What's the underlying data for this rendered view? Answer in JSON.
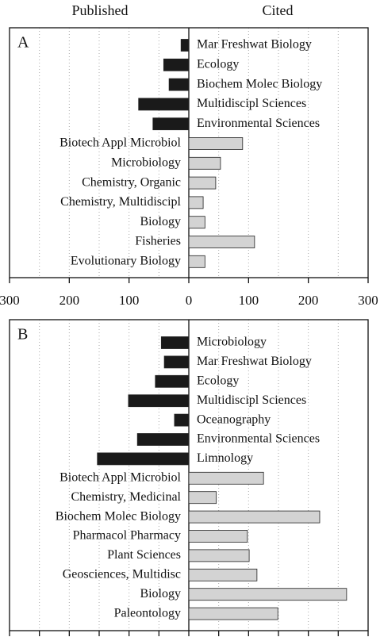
{
  "chart_data": [
    {
      "type": "bar",
      "orientation": "horizontal",
      "panel": "A",
      "categories": [
        "Mar Freshwat Biology",
        "Ecology",
        "Biochem Molec Biology",
        "Multidiscipl Sciences",
        "Environmental Sciences",
        "Biotech Appl Microbiol",
        "Microbiology",
        "Chemistry, Organic",
        "Chemistry, Multidiscipl",
        "Biology",
        "Fisheries",
        "Evolutionary Biology"
      ],
      "series": [
        {
          "name": "Published",
          "color": "#1a1a1a",
          "values": [
            -13,
            -42,
            -33,
            -84,
            -60,
            null,
            null,
            null,
            null,
            null,
            null,
            null
          ]
        },
        {
          "name": "Cited",
          "color": "#d3d3d3",
          "values": [
            null,
            null,
            null,
            null,
            null,
            90,
            53,
            45,
            24,
            27,
            110,
            27
          ]
        }
      ],
      "xlim": [
        -300,
        300
      ],
      "xticks": [
        {
          "value": -300,
          "label": "300"
        },
        {
          "value": -200,
          "label": "200"
        },
        {
          "value": -100,
          "label": "100"
        },
        0,
        100,
        200,
        300
      ],
      "xgrid": [
        -250,
        -200,
        -150,
        -100,
        -50,
        50,
        100,
        150,
        200,
        250
      ]
    },
    {
      "type": "bar",
      "orientation": "horizontal",
      "panel": "B",
      "categories": [
        "Microbiology",
        "Mar Freshwat Biology",
        "Ecology",
        "Multidiscipl Sciences",
        "Oceanography",
        "Environmental Sciences",
        "Limnology",
        "Biotech Appl Microbiol",
        "Chemistry, Medicinal",
        "Biochem Molec Biology",
        "Pharmacol  Pharmacy",
        "Plant Sciences",
        "Geosciences, Multidisc",
        "Biology",
        "Paleontology"
      ],
      "series": [
        {
          "color": "#1a1a1a",
          "values": [
            -46,
            -41,
            -56,
            -101,
            -24,
            -86,
            -153,
            null,
            null,
            null,
            null,
            null,
            null,
            null,
            null
          ]
        },
        {
          "color": "#d3d3d3",
          "values": [
            null,
            null,
            null,
            null,
            null,
            null,
            null,
            125,
            46,
            219,
            98,
            101,
            114,
            264,
            149
          ]
        }
      ],
      "xlim": [
        -300,
        300
      ],
      "xticks": [
        -300,
        -250,
        -200,
        -150,
        -100,
        -50,
        0,
        50,
        100,
        150,
        200,
        250,
        300
      ],
      "xgrid": [
        -250,
        -200,
        -150,
        -100,
        -50,
        50,
        100,
        150,
        200,
        250
      ]
    }
  ]
}
